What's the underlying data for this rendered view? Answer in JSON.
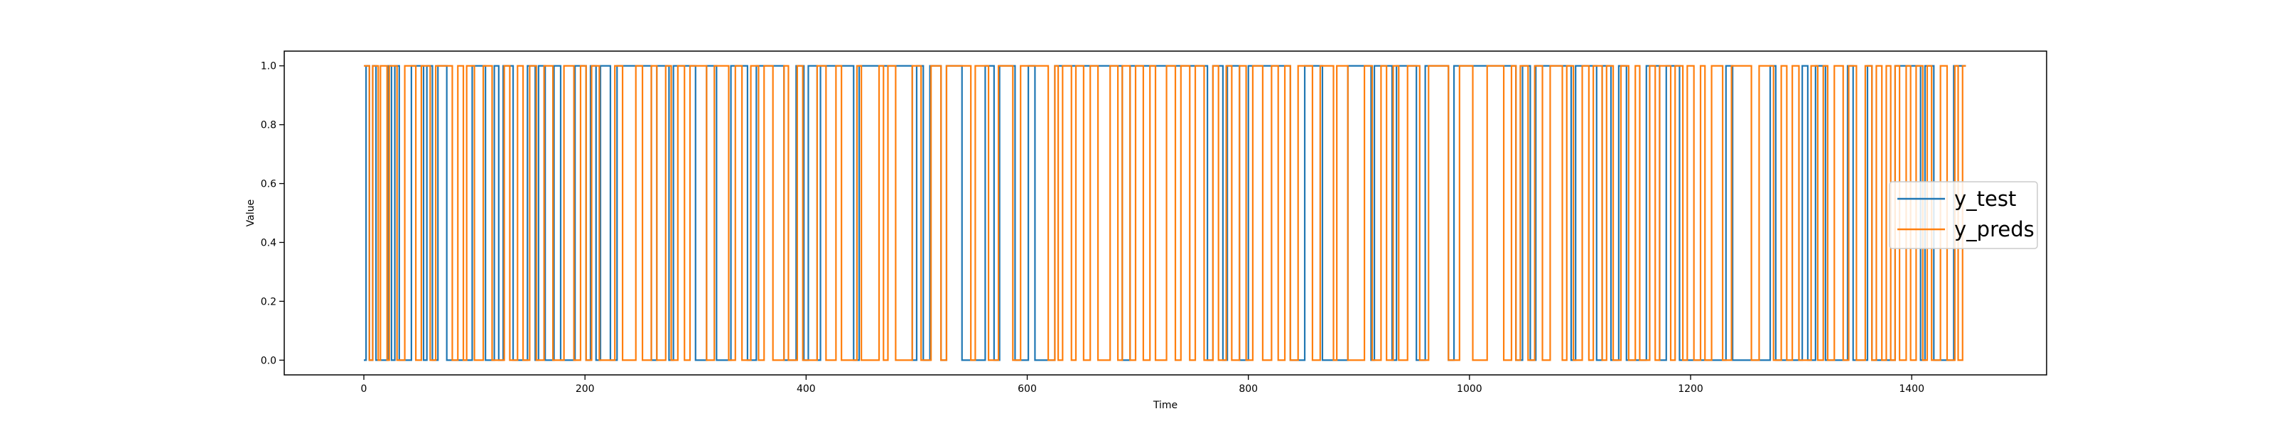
{
  "chart_data": {
    "type": "line",
    "xlabel": "Time",
    "ylabel": "Value",
    "xlim": [
      -72,
      1522
    ],
    "ylim": [
      -0.05,
      1.05
    ],
    "xticks": [
      0,
      200,
      400,
      600,
      800,
      1000,
      1200,
      1400
    ],
    "yticks": [
      0.0,
      0.2,
      0.4,
      0.6,
      0.8,
      1.0
    ],
    "xtick_labels": [
      "0",
      "200",
      "400",
      "600",
      "800",
      "1000",
      "1200",
      "1400"
    ],
    "ytick_labels": [
      "0.0",
      "0.2",
      "0.4",
      "0.6",
      "0.8",
      "1.0"
    ],
    "grid": false,
    "legend_position": "center-right",
    "series": [
      {
        "name": "y_test",
        "color": "#1f77b4",
        "step": true,
        "x_range": [
          0,
          1449
        ],
        "initial_value": 0,
        "toggles": [
          2,
          5,
          8,
          11,
          22,
          25,
          28,
          32,
          43,
          54,
          57,
          62,
          67,
          75,
          98,
          110,
          118,
          122,
          126,
          135,
          148,
          155,
          158,
          164,
          172,
          178,
          191,
          201,
          205,
          210,
          214,
          223,
          229,
          260,
          265,
          276,
          280,
          300,
          310,
          319,
          332,
          347,
          355,
          380,
          391,
          398,
          402,
          410,
          413,
          443,
          448,
          496,
          500,
          506,
          512,
          522,
          527,
          541,
          562,
          570,
          575,
          589,
          601,
          607,
          625,
          686,
          693,
          763,
          768,
          777,
          781,
          792,
          800,
          838,
          851,
          867,
          890,
          911,
          914,
          930,
          934,
          952,
          960,
          981,
          986,
          1042,
          1048,
          1055,
          1060,
          1092,
          1096,
          1115,
          1120,
          1128,
          1135,
          1142,
          1160,
          1172,
          1178,
          1190,
          1232,
          1238,
          1272,
          1277,
          1301,
          1306,
          1313,
          1322,
          1342,
          1347,
          1360,
          1364,
          1385,
          1408,
          1412,
          1420,
          1438
        ]
      },
      {
        "name": "y_preds",
        "color": "#ff7f0e",
        "step": true,
        "x_range": [
          0,
          1449
        ],
        "initial_value": 1,
        "toggles": [
          5,
          8,
          13,
          15,
          21,
          23,
          30,
          37,
          47,
          52,
          60,
          65,
          80,
          85,
          90,
          93,
          100,
          108,
          116,
          127,
          132,
          139,
          144,
          150,
          156,
          163,
          171,
          181,
          190,
          196,
          201,
          206,
          213,
          227,
          234,
          246,
          252,
          260,
          265,
          273,
          278,
          284,
          290,
          295,
          310,
          317,
          330,
          336,
          342,
          350,
          357,
          362,
          370,
          380,
          384,
          392,
          397,
          410,
          418,
          427,
          432,
          446,
          450,
          466,
          470,
          474,
          481,
          496,
          504,
          513,
          522,
          527,
          549,
          553,
          565,
          574,
          587,
          594,
          619,
          625,
          628,
          632,
          640,
          644,
          651,
          657,
          664,
          675,
          682,
          686,
          693,
          698,
          705,
          711,
          716,
          726,
          734,
          739,
          747,
          752,
          760,
          768,
          773,
          780,
          785,
          792,
          798,
          804,
          813,
          821,
          827,
          833,
          838,
          845,
          858,
          865,
          877,
          880,
          890,
          905,
          912,
          920,
          925,
          931,
          936,
          944,
          955,
          963,
          981,
          991,
          1003,
          1016,
          1031,
          1038,
          1042,
          1046,
          1053,
          1059,
          1066,
          1073,
          1084,
          1088,
          1094,
          1102,
          1108,
          1112,
          1120,
          1124,
          1130,
          1137,
          1144,
          1150,
          1154,
          1163,
          1168,
          1172,
          1182,
          1186,
          1193,
          1197,
          1203,
          1209,
          1213,
          1219,
          1229,
          1237,
          1255,
          1262,
          1275,
          1282,
          1287,
          1292,
          1298,
          1309,
          1315,
          1320,
          1324,
          1330,
          1338,
          1343,
          1350,
          1358,
          1364,
          1368,
          1373,
          1377,
          1381,
          1385,
          1389,
          1395,
          1399,
          1404,
          1410,
          1414,
          1418,
          1426,
          1432,
          1439,
          1442,
          1446
        ]
      }
    ]
  }
}
